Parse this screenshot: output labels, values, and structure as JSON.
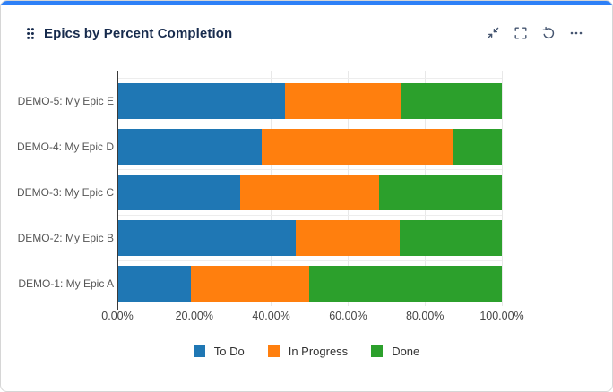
{
  "card": {
    "title": "Epics by Percent Completion",
    "accent_color": "#2e80f7",
    "toolbar": {
      "drag_icon": "drag-handle-icon",
      "buttons": [
        {
          "name": "collapse-button",
          "icon": "collapse-arrows-icon"
        },
        {
          "name": "fullscreen-button",
          "icon": "fullscreen-brackets-icon"
        },
        {
          "name": "refresh-button",
          "icon": "refresh-icon"
        },
        {
          "name": "more-options-button",
          "icon": "ellipsis-icon"
        }
      ],
      "icon_color": "#44546f"
    }
  },
  "chart_data": {
    "type": "bar",
    "orientation": "horizontal",
    "stacked": true,
    "title": "Epics by Percent Completion",
    "categories": [
      "DEMO-5: My Epic E",
      "DEMO-4: My Epic D",
      "DEMO-3: My Epic C",
      "DEMO-2: My Epic B",
      "DEMO-1: My Epic A"
    ],
    "series": [
      {
        "name": "To Do",
        "color": "#1f77b4",
        "values": [
          43.5,
          37.5,
          32.0,
          46.5,
          19.0
        ]
      },
      {
        "name": "In Progress",
        "color": "#ff7f0e",
        "values": [
          30.5,
          50.0,
          36.0,
          27.0,
          31.0
        ]
      },
      {
        "name": "Done",
        "color": "#2ca02c",
        "values": [
          26.0,
          12.5,
          32.0,
          26.5,
          50.0
        ]
      }
    ],
    "xlim": [
      0,
      100
    ],
    "x_tick_labels": [
      "0.00%",
      "20.00%",
      "40.00%",
      "60.00%",
      "80.00%",
      "100.00%"
    ],
    "xlabel": "",
    "ylabel": "",
    "grid": true,
    "legend_position": "bottom"
  }
}
